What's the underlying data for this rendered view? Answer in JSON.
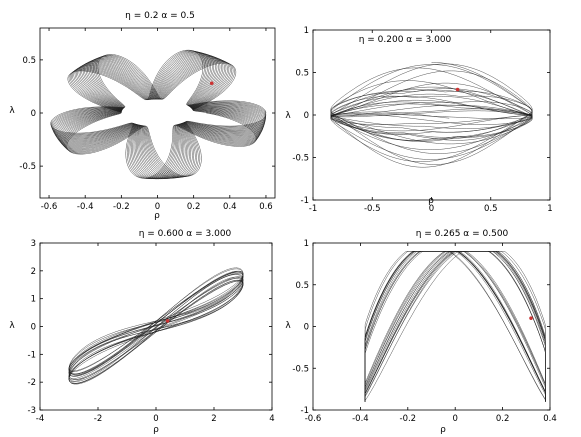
{
  "chart_data": [
    {
      "type": "line",
      "title": "η = 0.2   α = 0.5",
      "xlabel": "ρ",
      "ylabel": "λ",
      "xlim": [
        -0.65,
        0.65
      ],
      "ylim": [
        -0.8,
        0.8
      ],
      "xticks": [
        -0.6,
        -0.4,
        -0.2,
        0,
        0.2,
        0.4,
        0.6
      ],
      "xtick_labels": [
        "-0.6",
        "-0.4",
        "-0.2",
        "0",
        "0.2",
        "0.4",
        "0.6"
      ],
      "yticks": [
        -0.5,
        0,
        0.5
      ],
      "ytick_labels": [
        "-0.5",
        "0",
        "0.5"
      ],
      "grid": false,
      "curve": {
        "shape": "torus-trajectory",
        "outer_x": 0.6,
        "inner_x": 0.2,
        "outer_y": 0.62,
        "inner_y": 0.13
      },
      "marker": {
        "x": 0.3,
        "y": 0.28,
        "color": "#cc3333"
      }
    },
    {
      "type": "line",
      "title": "η = 0.200   α = 3.000",
      "xlabel": "ρ",
      "ylabel": "λ",
      "xlim": [
        -1,
        1
      ],
      "ylim": [
        -1,
        1
      ],
      "xticks": [
        -1,
        -0.5,
        0,
        0.5,
        1
      ],
      "xtick_labels": [
        "-1",
        "-0.5",
        "0",
        "0.5",
        "1"
      ],
      "yticks": [
        -1,
        -0.5,
        0,
        0.5,
        1
      ],
      "ytick_labels": [
        "-1",
        "-0.5",
        "0",
        "0.5",
        "1"
      ],
      "grid": false,
      "curve": {
        "shape": "lens-trajectory",
        "outer_x": 0.85,
        "outer_y": 0.62
      },
      "marker": {
        "x": 0.22,
        "y": 0.3,
        "color": "#cc3333"
      }
    },
    {
      "type": "line",
      "title": "η = 0.600   α = 3.000",
      "xlabel": "ρ",
      "ylabel": "λ",
      "xlim": [
        -4,
        4
      ],
      "ylim": [
        -3,
        3
      ],
      "xticks": [
        -4,
        -2,
        0,
        2,
        4
      ],
      "xtick_labels": [
        "-4",
        "-2",
        "0",
        "2",
        "4"
      ],
      "yticks": [
        -3,
        -2,
        -1,
        0,
        1,
        2,
        3
      ],
      "ytick_labels": [
        "-3",
        "-2",
        "-1",
        "0",
        "1",
        "2",
        "3"
      ],
      "grid": false,
      "curve": {
        "shape": "figure-eight-diagonal",
        "x_extent": 3.0,
        "y_extent": 2.0
      },
      "marker": {
        "x": 0.4,
        "y": 0.2,
        "color": "#cc3333"
      }
    },
    {
      "type": "line",
      "title": "η = 0.265   α = 0.500",
      "xlabel": "ρ",
      "ylabel": "λ",
      "xlim": [
        -0.6,
        0.4
      ],
      "ylim": [
        -1,
        1
      ],
      "xticks": [
        -0.6,
        -0.4,
        -0.2,
        0,
        0.2,
        0.4
      ],
      "xtick_labels": [
        "-0.6",
        "-0.4",
        "-0.2",
        "0",
        "0.2",
        "0.4"
      ],
      "yticks": [
        -1,
        -0.5,
        0,
        0.5,
        1
      ],
      "ytick_labels": [
        "-1",
        "-0.5",
        "0",
        "0.5",
        "1"
      ],
      "grid": false,
      "curve": {
        "shape": "lissajous-box",
        "x_min": -0.38,
        "x_max": 0.38,
        "y_extent": 0.9
      },
      "marker": {
        "x": 0.32,
        "y": 0.1,
        "color": "#cc3333"
      }
    }
  ]
}
